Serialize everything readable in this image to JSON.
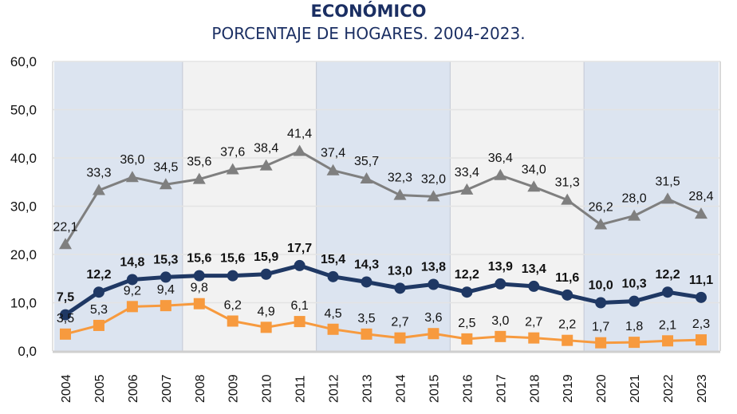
{
  "header": {
    "title": "ECONÓMICO",
    "subtitle": "PORCENTAJE DE HOGARES. 2004-2023."
  },
  "chart_data": {
    "type": "line",
    "title": "ECONÓMICO",
    "subtitle": "PORCENTAJE DE HOGARES. 2004-2023.",
    "xlabel": "",
    "ylabel": "",
    "ylim": [
      0,
      60
    ],
    "yticks": [
      "0,0",
      "10,0",
      "20,0",
      "30,0",
      "40,0",
      "50,0",
      "60,0"
    ],
    "ytick_values": [
      0,
      10,
      20,
      30,
      40,
      50,
      60
    ],
    "grid": true,
    "legend": "none",
    "categories": [
      "2004",
      "2005",
      "2006",
      "2007",
      "2008",
      "2009",
      "2010",
      "2011",
      "2012",
      "2013",
      "2014",
      "2015",
      "2016",
      "2017",
      "2018",
      "2019",
      "2020",
      "2021",
      "2022",
      "2023"
    ],
    "background_bands": [
      {
        "from": "2004",
        "to": "2007",
        "color": "#dce4f0"
      },
      {
        "from": "2008",
        "to": "2011",
        "color": "#f2f2f2"
      },
      {
        "from": "2012",
        "to": "2015",
        "color": "#dce4f0"
      },
      {
        "from": "2016",
        "to": "2019",
        "color": "#f2f2f2"
      },
      {
        "from": "2020",
        "to": "2023",
        "color": "#dce4f0"
      }
    ],
    "series": [
      {
        "name": "gray-triangle-series",
        "color": "#7f7f7f",
        "marker": "triangle",
        "bold_labels": false,
        "values": [
          22.1,
          33.3,
          36.0,
          34.5,
          35.6,
          37.6,
          38.4,
          41.4,
          37.4,
          35.7,
          32.3,
          32.0,
          33.4,
          36.4,
          34.0,
          31.3,
          26.2,
          28.0,
          31.5,
          28.4
        ],
        "labels": [
          "22,1",
          "33,3",
          "36,0",
          "34,5",
          "35,6",
          "37,6",
          "38,4",
          "41,4",
          "37,4",
          "35,7",
          "32,3",
          "32,0",
          "33,4",
          "36,4",
          "34,0",
          "31,3",
          "26,2",
          "28,0",
          "31,5",
          "28,4"
        ]
      },
      {
        "name": "navy-circle-series",
        "color": "#1f3864",
        "marker": "circle",
        "bold_labels": true,
        "values": [
          7.5,
          12.2,
          14.8,
          15.3,
          15.6,
          15.6,
          15.9,
          17.7,
          15.4,
          14.3,
          13.0,
          13.8,
          12.2,
          13.9,
          13.4,
          11.6,
          10.0,
          10.3,
          12.2,
          11.1
        ],
        "labels": [
          "7,5",
          "12,2",
          "14,8",
          "15,3",
          "15,6",
          "15,6",
          "15,9",
          "17,7",
          "15,4",
          "14,3",
          "13,0",
          "13,8",
          "12,2",
          "13,9",
          "13,4",
          "11,6",
          "10,0",
          "10,3",
          "12,2",
          "11,1"
        ]
      },
      {
        "name": "orange-square-series",
        "color": "#f79a3e",
        "marker": "square",
        "bold_labels": false,
        "values": [
          3.5,
          5.3,
          9.2,
          9.4,
          9.8,
          6.2,
          4.9,
          6.1,
          4.5,
          3.5,
          2.7,
          3.6,
          2.5,
          3.0,
          2.7,
          2.2,
          1.7,
          1.8,
          2.1,
          2.3
        ],
        "labels": [
          "3,5",
          "5,3",
          "9,2",
          "9,4",
          "9,8",
          "6,2",
          "4,9",
          "6,1",
          "4,5",
          "3,5",
          "2,7",
          "3,6",
          "2,5",
          "3,0",
          "2,7",
          "2,2",
          "1,7",
          "1,8",
          "2,1",
          "2,3"
        ]
      }
    ]
  }
}
